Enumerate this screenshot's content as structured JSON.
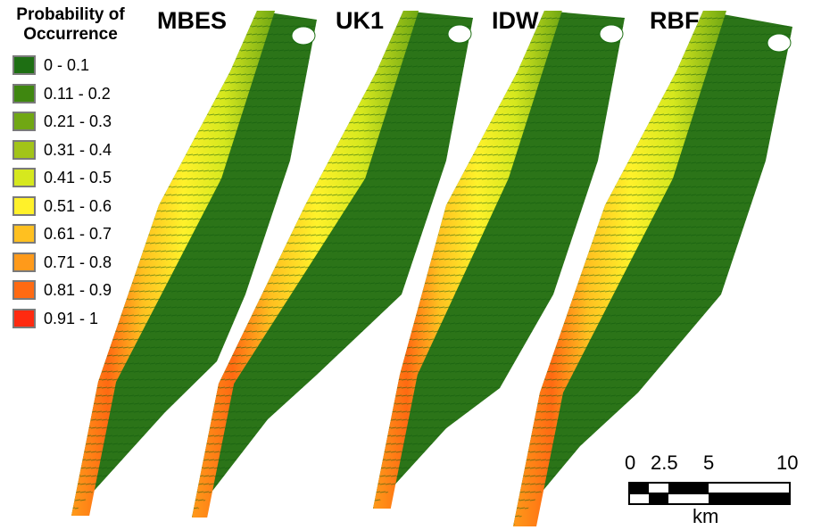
{
  "legend": {
    "title_line1": "Probability of",
    "title_line2": "Occurrence",
    "items": [
      {
        "label": "0 - 0.1",
        "color": "#1e6f13"
      },
      {
        "label": "0.11 - 0.2",
        "color": "#3f8710"
      },
      {
        "label": "0.21 - 0.3",
        "color": "#70a713"
      },
      {
        "label": "0.31 - 0.4",
        "color": "#a2c418"
      },
      {
        "label": "0.41 - 0.5",
        "color": "#d6e81e"
      },
      {
        "label": "0.51 - 0.6",
        "color": "#fff12a"
      },
      {
        "label": "0.61 - 0.7",
        "color": "#ffc020"
      },
      {
        "label": "0.71 - 0.8",
        "color": "#ff9a1a"
      },
      {
        "label": "0.81 - 0.9",
        "color": "#ff6a12"
      },
      {
        "label": "0.91 - 1",
        "color": "#ff2a10"
      }
    ]
  },
  "panels": [
    {
      "title": "MBES"
    },
    {
      "title": "UK1"
    },
    {
      "title": "IDW"
    },
    {
      "title": "RBF"
    }
  ],
  "scale_bar": {
    "labels": [
      "0",
      "2.5",
      "5",
      "10"
    ],
    "unit": "km"
  }
}
